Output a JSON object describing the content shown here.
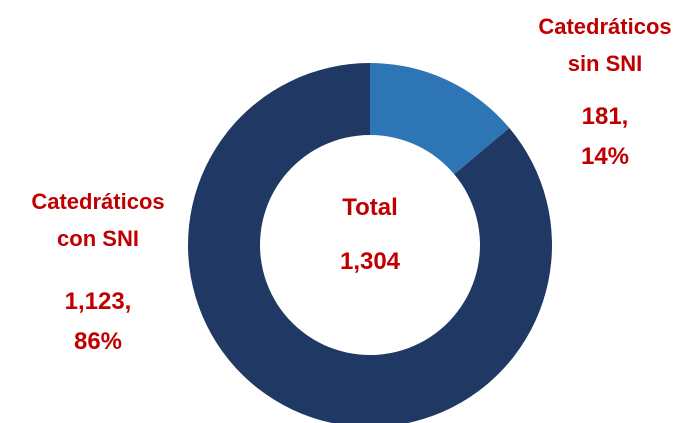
{
  "chart_data": {
    "type": "donut",
    "categories": [
      "Catedráticos sin SNI",
      "Catedráticos con SNI"
    ],
    "values": [
      181,
      1123
    ],
    "value_labels": [
      "181, 14%",
      "1,123, 86%"
    ],
    "colors": [
      "#2e75b6",
      "#203864"
    ],
    "center": {
      "label": "Total",
      "value": "1,304"
    }
  }
}
